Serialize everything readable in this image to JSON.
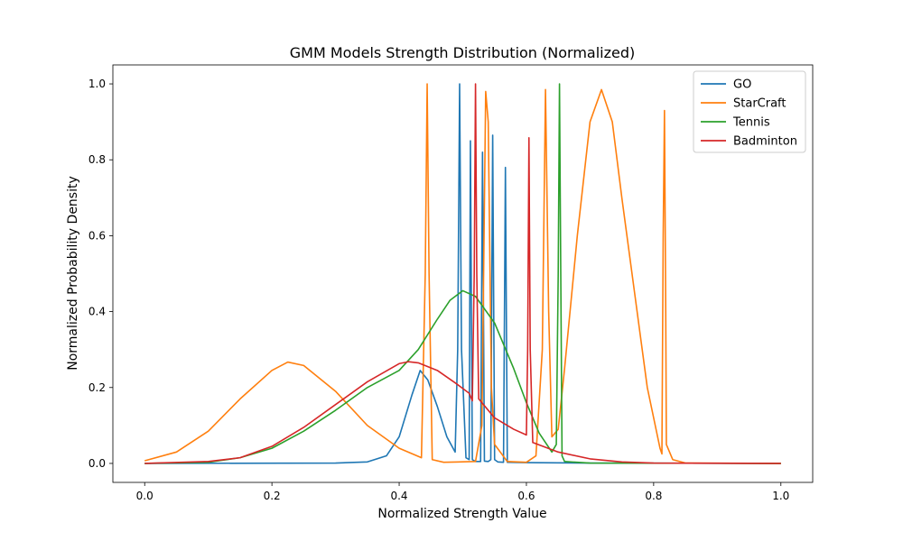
{
  "chart_data": {
    "type": "line",
    "title": "GMM Models Strength Distribution (Normalized)",
    "xlabel": "Normalized Strength Value",
    "ylabel": "Normalized Probability Density",
    "xlim": [
      -0.05,
      1.05
    ],
    "ylim": [
      -0.05,
      1.05
    ],
    "xticks": [
      0.0,
      0.2,
      0.4,
      0.6,
      0.8,
      1.0
    ],
    "xtick_labels": [
      "0.0",
      "0.2",
      "0.4",
      "0.6",
      "0.8",
      "1.0"
    ],
    "yticks": [
      0.0,
      0.2,
      0.4,
      0.6,
      0.8,
      1.0
    ],
    "ytick_labels": [
      "0.0",
      "0.2",
      "0.4",
      "0.6",
      "0.8",
      "1.0"
    ],
    "grid": false,
    "legend_position": "top-right",
    "series": [
      {
        "name": "GO",
        "color": "#1f77b4",
        "points": [
          [
            0.0,
            0.0
          ],
          [
            0.3,
            0.001
          ],
          [
            0.35,
            0.004
          ],
          [
            0.38,
            0.02
          ],
          [
            0.4,
            0.07
          ],
          [
            0.42,
            0.18
          ],
          [
            0.433,
            0.245
          ],
          [
            0.445,
            0.22
          ],
          [
            0.46,
            0.15
          ],
          [
            0.475,
            0.07
          ],
          [
            0.488,
            0.03
          ],
          [
            0.492,
            0.3
          ],
          [
            0.495,
            1.0
          ],
          [
            0.498,
            0.3
          ],
          [
            0.505,
            0.015
          ],
          [
            0.51,
            0.01
          ],
          [
            0.512,
            0.85
          ],
          [
            0.515,
            0.01
          ],
          [
            0.52,
            0.005
          ],
          [
            0.528,
            0.005
          ],
          [
            0.531,
            0.82
          ],
          [
            0.534,
            0.006
          ],
          [
            0.54,
            0.005
          ],
          [
            0.544,
            0.01
          ],
          [
            0.547,
            0.865
          ],
          [
            0.55,
            0.01
          ],
          [
            0.555,
            0.004
          ],
          [
            0.564,
            0.003
          ],
          [
            0.567,
            0.78
          ],
          [
            0.57,
            0.003
          ],
          [
            0.6,
            0.002
          ],
          [
            0.7,
            0.001
          ],
          [
            1.0,
            0.0
          ]
        ]
      },
      {
        "name": "StarCraft",
        "color": "#ff7f0e",
        "points": [
          [
            0.0,
            0.007
          ],
          [
            0.05,
            0.03
          ],
          [
            0.1,
            0.085
          ],
          [
            0.15,
            0.17
          ],
          [
            0.2,
            0.245
          ],
          [
            0.225,
            0.267
          ],
          [
            0.25,
            0.258
          ],
          [
            0.3,
            0.19
          ],
          [
            0.35,
            0.1
          ],
          [
            0.4,
            0.04
          ],
          [
            0.435,
            0.015
          ],
          [
            0.441,
            0.5
          ],
          [
            0.444,
            1.0
          ],
          [
            0.447,
            0.5
          ],
          [
            0.452,
            0.01
          ],
          [
            0.47,
            0.003
          ],
          [
            0.52,
            0.005
          ],
          [
            0.53,
            0.1
          ],
          [
            0.536,
            0.98
          ],
          [
            0.54,
            0.9
          ],
          [
            0.545,
            0.2
          ],
          [
            0.55,
            0.05
          ],
          [
            0.57,
            0.005
          ],
          [
            0.6,
            0.003
          ],
          [
            0.615,
            0.02
          ],
          [
            0.625,
            0.3
          ],
          [
            0.63,
            0.985
          ],
          [
            0.635,
            0.4
          ],
          [
            0.64,
            0.07
          ],
          [
            0.65,
            0.09
          ],
          [
            0.66,
            0.25
          ],
          [
            0.68,
            0.6
          ],
          [
            0.7,
            0.9
          ],
          [
            0.718,
            0.985
          ],
          [
            0.735,
            0.9
          ],
          [
            0.75,
            0.7
          ],
          [
            0.77,
            0.45
          ],
          [
            0.79,
            0.2
          ],
          [
            0.81,
            0.04
          ],
          [
            0.813,
            0.025
          ],
          [
            0.815,
            0.6
          ],
          [
            0.817,
            0.93
          ],
          [
            0.819,
            0.4
          ],
          [
            0.82,
            0.05
          ],
          [
            0.83,
            0.01
          ],
          [
            0.85,
            0.001
          ],
          [
            1.0,
            0.0
          ]
        ]
      },
      {
        "name": "Tennis",
        "color": "#2ca02c",
        "points": [
          [
            0.0,
            0.0
          ],
          [
            0.1,
            0.003
          ],
          [
            0.15,
            0.015
          ],
          [
            0.2,
            0.04
          ],
          [
            0.25,
            0.085
          ],
          [
            0.3,
            0.14
          ],
          [
            0.35,
            0.2
          ],
          [
            0.4,
            0.245
          ],
          [
            0.43,
            0.3
          ],
          [
            0.46,
            0.38
          ],
          [
            0.48,
            0.43
          ],
          [
            0.5,
            0.455
          ],
          [
            0.52,
            0.44
          ],
          [
            0.55,
            0.37
          ],
          [
            0.58,
            0.25
          ],
          [
            0.6,
            0.16
          ],
          [
            0.62,
            0.08
          ],
          [
            0.64,
            0.03
          ],
          [
            0.647,
            0.05
          ],
          [
            0.65,
            0.5
          ],
          [
            0.652,
            1.0
          ],
          [
            0.654,
            0.5
          ],
          [
            0.656,
            0.02
          ],
          [
            0.66,
            0.005
          ],
          [
            0.7,
            0.001
          ],
          [
            1.0,
            0.0
          ]
        ]
      },
      {
        "name": "Badminton",
        "color": "#d62728",
        "points": [
          [
            0.0,
            0.0
          ],
          [
            0.1,
            0.005
          ],
          [
            0.15,
            0.015
          ],
          [
            0.2,
            0.045
          ],
          [
            0.25,
            0.095
          ],
          [
            0.3,
            0.155
          ],
          [
            0.35,
            0.215
          ],
          [
            0.4,
            0.263
          ],
          [
            0.415,
            0.268
          ],
          [
            0.43,
            0.265
          ],
          [
            0.46,
            0.245
          ],
          [
            0.49,
            0.21
          ],
          [
            0.51,
            0.185
          ],
          [
            0.515,
            0.165
          ],
          [
            0.518,
            0.5
          ],
          [
            0.52,
            1.0
          ],
          [
            0.522,
            0.5
          ],
          [
            0.525,
            0.17
          ],
          [
            0.55,
            0.12
          ],
          [
            0.58,
            0.09
          ],
          [
            0.6,
            0.075
          ],
          [
            0.602,
            0.3
          ],
          [
            0.604,
            0.858
          ],
          [
            0.606,
            0.3
          ],
          [
            0.61,
            0.055
          ],
          [
            0.65,
            0.03
          ],
          [
            0.7,
            0.012
          ],
          [
            0.75,
            0.004
          ],
          [
            0.8,
            0.001
          ],
          [
            1.0,
            0.0
          ]
        ]
      }
    ]
  }
}
